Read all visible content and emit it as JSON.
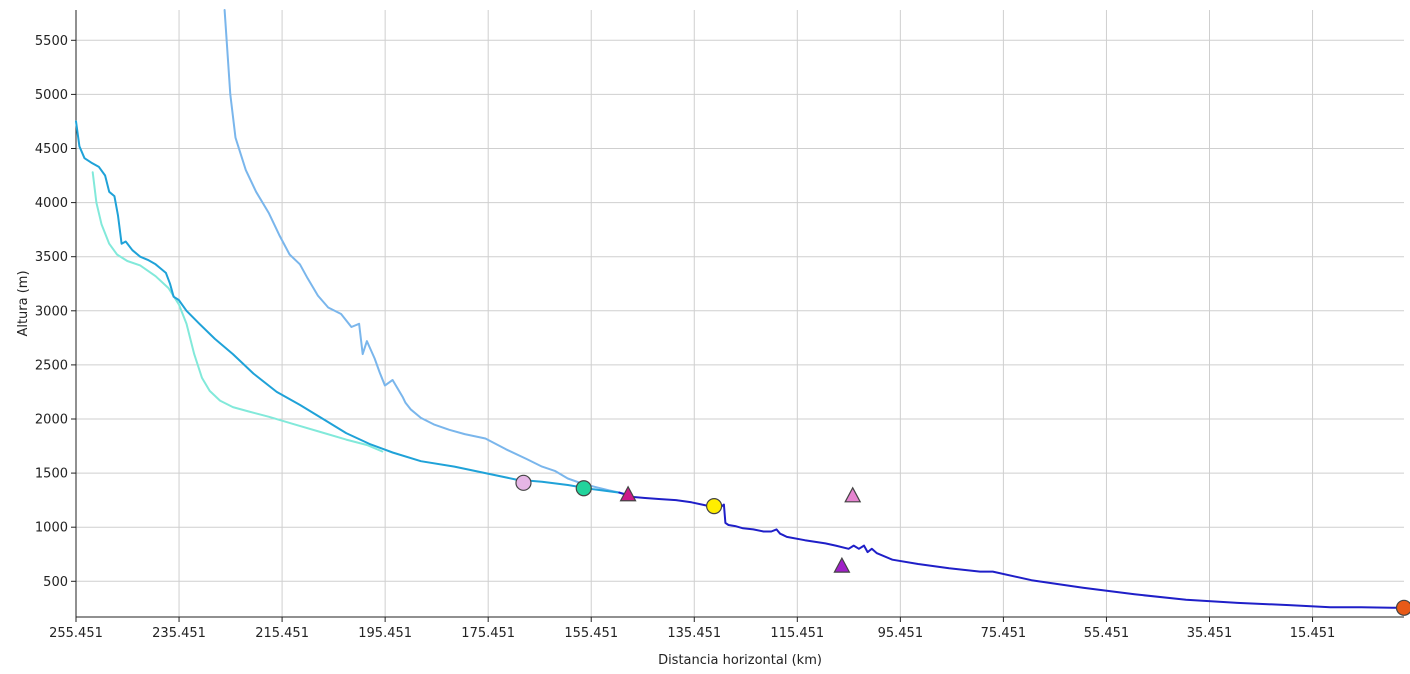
{
  "chart_data": {
    "type": "line",
    "title": "",
    "xlabel": "Distancia horizontal (km)",
    "ylabel": "Altura (m)",
    "x_reversed": true,
    "xlim": [
      255.451,
      -2.3
    ],
    "ylim": [
      170,
      5780
    ],
    "grid": true,
    "x_ticks": [
      255.451,
      235.451,
      215.451,
      195.451,
      175.451,
      155.451,
      135.451,
      115.451,
      95.451,
      75.451,
      55.451,
      35.451,
      15.451
    ],
    "x_tick_labels": [
      "255.451",
      "235.451",
      "215.451",
      "195.451",
      "175.451",
      "155.451",
      "135.451",
      "115.451",
      "95.451",
      "75.451",
      "55.451",
      "35.451",
      "15.451"
    ],
    "y_ticks": [
      500,
      1000,
      1500,
      2000,
      2500,
      3000,
      3500,
      4000,
      4500,
      5000,
      5500
    ],
    "y_tick_labels": [
      "500",
      "1000",
      "1500",
      "2000",
      "2500",
      "3000",
      "3500",
      "4000",
      "4500",
      "5000",
      "5500"
    ],
    "series": [
      {
        "color": "#82e9da",
        "x": [
          252.2,
          251.5,
          250.5,
          249.0,
          247.5,
          245.5,
          243.0,
          240.0,
          237.5,
          235.5,
          234.0,
          232.5,
          231.0,
          229.5,
          227.5,
          225.0,
          222.0,
          218.0,
          213.0,
          208.0,
          203.0,
          199.0,
          196.0
        ],
        "y": [
          4280,
          4000,
          3800,
          3620,
          3520,
          3460,
          3420,
          3320,
          3210,
          3060,
          2880,
          2600,
          2380,
          2260,
          2170,
          2110,
          2070,
          2020,
          1950,
          1880,
          1810,
          1760,
          1700
        ]
      },
      {
        "color": "#7ab6ec",
        "x": [
          226.6,
          225.5,
          224.5,
          222.5,
          220.5,
          218.0,
          216.0,
          214.0,
          212.0,
          210.5,
          208.5,
          206.5,
          204.0,
          202.0,
          200.5,
          199.8,
          199.0,
          197.5,
          196.5,
          195.5,
          194.0,
          192.0,
          191.5,
          190.5,
          188.5,
          186.0,
          183.0,
          180.0,
          176.0,
          172.0,
          168.0,
          165.0,
          162.5,
          160.0,
          157.0,
          154.5,
          152.0,
          149.0
        ],
        "y": [
          5780,
          5000,
          4600,
          4300,
          4100,
          3900,
          3700,
          3520,
          3430,
          3300,
          3140,
          3030,
          2970,
          2850,
          2880,
          2600,
          2720,
          2560,
          2430,
          2310,
          2360,
          2200,
          2150,
          2090,
          2010,
          1950,
          1900,
          1860,
          1820,
          1720,
          1630,
          1560,
          1520,
          1450,
          1400,
          1370,
          1340,
          1310
        ]
      },
      {
        "color": "#1fa2d8",
        "x": [
          255.451,
          254.8,
          253.8,
          252.5,
          251.0,
          249.8,
          249.0,
          248.0,
          247.3,
          246.6,
          245.8,
          244.5,
          243.0,
          241.5,
          240.0,
          239.0,
          238.0,
          237.2,
          236.5,
          235.5,
          234.0,
          231.5,
          228.5,
          225.0,
          221.0,
          216.5,
          212.0,
          207.5,
          203.0,
          198.5,
          194.0,
          188.5,
          182.0,
          176.0,
          170.0,
          165.0,
          160.0,
          155.0,
          150.0
        ],
        "y": [
          4750,
          4520,
          4410,
          4370,
          4330,
          4250,
          4100,
          4060,
          3880,
          3620,
          3640,
          3560,
          3500,
          3470,
          3430,
          3390,
          3350,
          3250,
          3130,
          3100,
          3000,
          2880,
          2740,
          2600,
          2420,
          2250,
          2130,
          2000,
          1870,
          1770,
          1690,
          1610,
          1560,
          1500,
          1440,
          1420,
          1390,
          1350,
          1320
        ]
      },
      {
        "color": "#1f1fc8",
        "x": [
          150.0,
          147.5,
          145.0,
          142.0,
          139.0,
          136.0,
          133.0,
          131.0,
          130.2,
          129.7,
          129.4,
          128.8,
          127.5,
          126.0,
          124.0,
          122.0,
          120.5,
          119.5,
          118.8,
          118.3,
          117.5,
          114.0,
          110.0,
          108.0,
          105.5,
          104.5,
          103.5,
          102.5,
          101.8,
          101.0,
          100.0,
          97.0,
          92.0,
          86.0,
          80.0,
          77.5,
          70.0,
          60.0,
          50.0,
          40.0,
          30.0,
          20.0,
          12.0,
          6.0,
          0.0,
          -2.3
        ],
        "y": [
          1320,
          1280,
          1270,
          1260,
          1250,
          1230,
          1200,
          1180,
          1190,
          1210,
          1040,
          1020,
          1010,
          990,
          980,
          960,
          960,
          980,
          940,
          930,
          910,
          880,
          850,
          830,
          800,
          830,
          800,
          830,
          770,
          800,
          760,
          700,
          660,
          620,
          590,
          590,
          510,
          440,
          380,
          330,
          300,
          280,
          260,
          260,
          255,
          255
        ]
      }
    ],
    "markers": [
      {
        "shape": "circle",
        "x": 168.6,
        "y": 1410,
        "color": "#e6b6e6"
      },
      {
        "shape": "circle",
        "x": 156.9,
        "y": 1360,
        "color": "#22d49c"
      },
      {
        "shape": "triangle",
        "x": 148.3,
        "y": 1300,
        "color": "#cc1a8a"
      },
      {
        "shape": "circle",
        "x": 131.6,
        "y": 1195,
        "color": "#ffee00"
      },
      {
        "shape": "triangle",
        "x": 104.7,
        "y": 1290,
        "color": "#e684d0"
      },
      {
        "shape": "triangle",
        "x": 106.8,
        "y": 640,
        "color": "#a020c8"
      },
      {
        "shape": "circle",
        "x": -2.3,
        "y": 255,
        "color": "#e85a18"
      }
    ]
  }
}
